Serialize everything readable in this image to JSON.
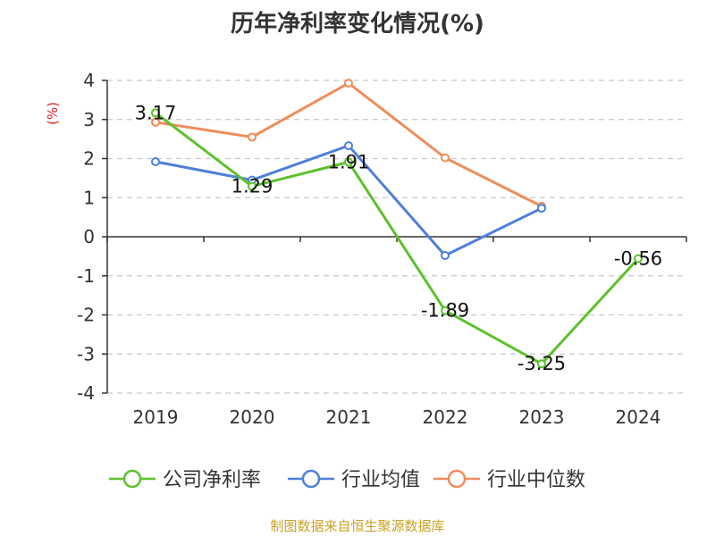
{
  "chart_data": {
    "type": "line",
    "title": "历年净利率变化情况(%)",
    "ylabel": "(%)",
    "categories": [
      "2019",
      "2020",
      "2021",
      "2022",
      "2023",
      "2024"
    ],
    "ylim": [
      -4,
      4
    ],
    "yticks": [
      "4",
      "3",
      "2",
      "1",
      "0",
      "-1",
      "-2",
      "-3",
      "-4"
    ],
    "grid": true,
    "legend_position": "bottom",
    "series": [
      {
        "name": "公司净利率",
        "color": "#5cc12a",
        "values": [
          3.17,
          1.29,
          1.91,
          -1.89,
          -3.25,
          -0.56
        ],
        "labels": [
          "3.17",
          "1.29",
          "1.91",
          "-1.89",
          "-3.25",
          "-0.56"
        ]
      },
      {
        "name": "行业均值",
        "color": "#4e7fd8",
        "values": [
          1.92,
          1.45,
          2.33,
          -0.48,
          0.73,
          null
        ]
      },
      {
        "name": "行业中位数",
        "color": "#f08c5a",
        "values": [
          2.93,
          2.55,
          3.93,
          2.02,
          0.78,
          null
        ]
      }
    ]
  },
  "footer": {
    "source": "制图数据来自恒生聚源数据库"
  }
}
